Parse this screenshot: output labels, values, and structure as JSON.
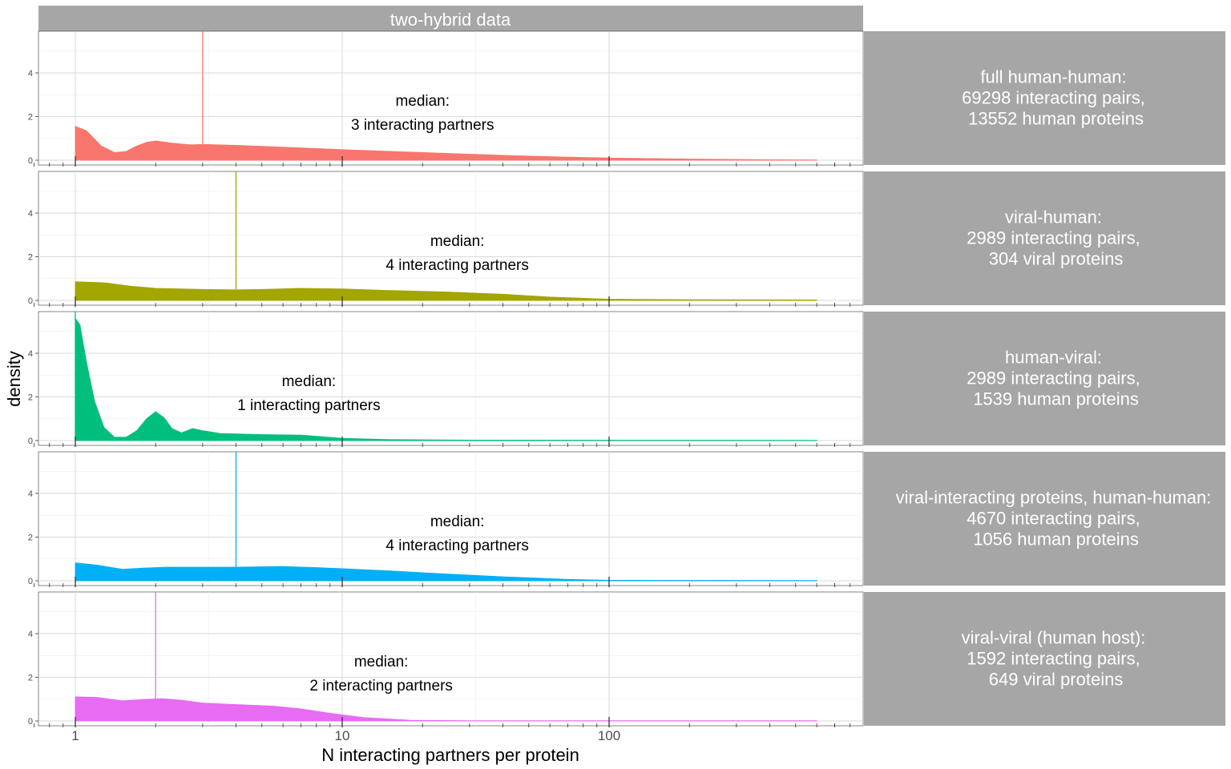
{
  "chart_data": {
    "type": "area",
    "title": "two-hybrid data",
    "xlabel": "N interacting partners per protein",
    "ylabel": "density",
    "x_scale": "log10",
    "xlim": [
      1,
      600
    ],
    "ylim": [
      0,
      5.8
    ],
    "x_ticks": [
      1,
      10,
      100
    ],
    "x_tick_labels": [
      "1",
      "10",
      "100"
    ],
    "y_ticks": [
      0,
      2,
      4
    ],
    "y_tick_labels": [
      "0",
      "2",
      "4"
    ],
    "grid": true,
    "panels": [
      {
        "strip": [
          "full human-human:",
          "69298 interacting pairs,",
          " 13552 human proteins"
        ],
        "color": "#F8766D",
        "median": 3,
        "annotation": [
          "median:",
          "3 interacting partners"
        ],
        "annotation_x": 20,
        "points": [
          [
            1,
            1.55
          ],
          [
            1.1,
            1.35
          ],
          [
            1.25,
            0.65
          ],
          [
            1.4,
            0.35
          ],
          [
            1.55,
            0.4
          ],
          [
            1.7,
            0.65
          ],
          [
            1.85,
            0.82
          ],
          [
            2,
            0.88
          ],
          [
            2.3,
            0.78
          ],
          [
            2.7,
            0.7
          ],
          [
            3,
            0.72
          ],
          [
            4,
            0.68
          ],
          [
            6,
            0.6
          ],
          [
            10,
            0.48
          ],
          [
            20,
            0.35
          ],
          [
            40,
            0.22
          ],
          [
            70,
            0.14
          ],
          [
            100,
            0.1
          ],
          [
            200,
            0.05
          ],
          [
            400,
            0.02
          ],
          [
            600,
            0.01
          ]
        ]
      },
      {
        "strip": [
          "viral-human:",
          "2989 interacting pairs,",
          " 304 viral proteins"
        ],
        "color": "#A3A500",
        "median": 4,
        "annotation": [
          "median:",
          "4 interacting partners"
        ],
        "annotation_x": 27,
        "points": [
          [
            1,
            0.85
          ],
          [
            1.3,
            0.8
          ],
          [
            1.6,
            0.65
          ],
          [
            2,
            0.55
          ],
          [
            3,
            0.5
          ],
          [
            4,
            0.48
          ],
          [
            5,
            0.5
          ],
          [
            7,
            0.55
          ],
          [
            10,
            0.52
          ],
          [
            15,
            0.45
          ],
          [
            25,
            0.38
          ],
          [
            40,
            0.28
          ],
          [
            60,
            0.15
          ],
          [
            100,
            0.05
          ],
          [
            200,
            0.03
          ],
          [
            600,
            0.02
          ]
        ]
      },
      {
        "strip": [
          "human-viral:",
          "2989 interacting pairs,",
          " 1539 human proteins"
        ],
        "color": "#00BF7D",
        "median": 1,
        "annotation": [
          "median:",
          "1 interacting partners"
        ],
        "annotation_x": 7.5,
        "points": [
          [
            1,
            5.6
          ],
          [
            1.04,
            5.3
          ],
          [
            1.1,
            3.6
          ],
          [
            1.18,
            1.8
          ],
          [
            1.28,
            0.6
          ],
          [
            1.4,
            0.15
          ],
          [
            1.55,
            0.15
          ],
          [
            1.7,
            0.45
          ],
          [
            1.85,
            1
          ],
          [
            2,
            1.32
          ],
          [
            2.15,
            1.05
          ],
          [
            2.3,
            0.55
          ],
          [
            2.5,
            0.35
          ],
          [
            2.75,
            0.55
          ],
          [
            3,
            0.45
          ],
          [
            3.5,
            0.32
          ],
          [
            4,
            0.3
          ],
          [
            5,
            0.27
          ],
          [
            7,
            0.25
          ],
          [
            10,
            0.1
          ],
          [
            15,
            0.04
          ],
          [
            30,
            0.02
          ],
          [
            600,
            0.01
          ]
        ]
      },
      {
        "strip": [
          "viral-interacting proteins, human-human:",
          "4670 interacting pairs,",
          " 1056 human proteins"
        ],
        "color": "#00B0F6",
        "median": 4,
        "annotation": [
          "median:",
          "4 interacting partners"
        ],
        "annotation_x": 27,
        "points": [
          [
            1,
            0.82
          ],
          [
            1.2,
            0.72
          ],
          [
            1.5,
            0.52
          ],
          [
            1.8,
            0.58
          ],
          [
            2.2,
            0.62
          ],
          [
            3,
            0.62
          ],
          [
            4,
            0.62
          ],
          [
            6,
            0.65
          ],
          [
            8,
            0.6
          ],
          [
            10,
            0.55
          ],
          [
            15,
            0.45
          ],
          [
            25,
            0.3
          ],
          [
            40,
            0.18
          ],
          [
            70,
            0.06
          ],
          [
            100,
            0.02
          ],
          [
            600,
            0.01
          ]
        ]
      },
      {
        "strip": [
          "viral-viral (human host):",
          "1592 interacting pairs,",
          " 649 viral proteins"
        ],
        "color": "#E76BF3",
        "median": 2,
        "annotation": [
          "median:",
          "2 interacting partners"
        ],
        "annotation_x": 14,
        "points": [
          [
            1,
            1.1
          ],
          [
            1.2,
            1.08
          ],
          [
            1.5,
            0.92
          ],
          [
            1.8,
            0.98
          ],
          [
            2.1,
            1.02
          ],
          [
            2.5,
            0.95
          ],
          [
            3,
            0.82
          ],
          [
            4,
            0.75
          ],
          [
            5.5,
            0.68
          ],
          [
            7,
            0.55
          ],
          [
            9,
            0.35
          ],
          [
            12,
            0.15
          ],
          [
            18,
            0.03
          ],
          [
            30,
            0.01
          ],
          [
            600,
            0.01
          ]
        ]
      }
    ]
  }
}
